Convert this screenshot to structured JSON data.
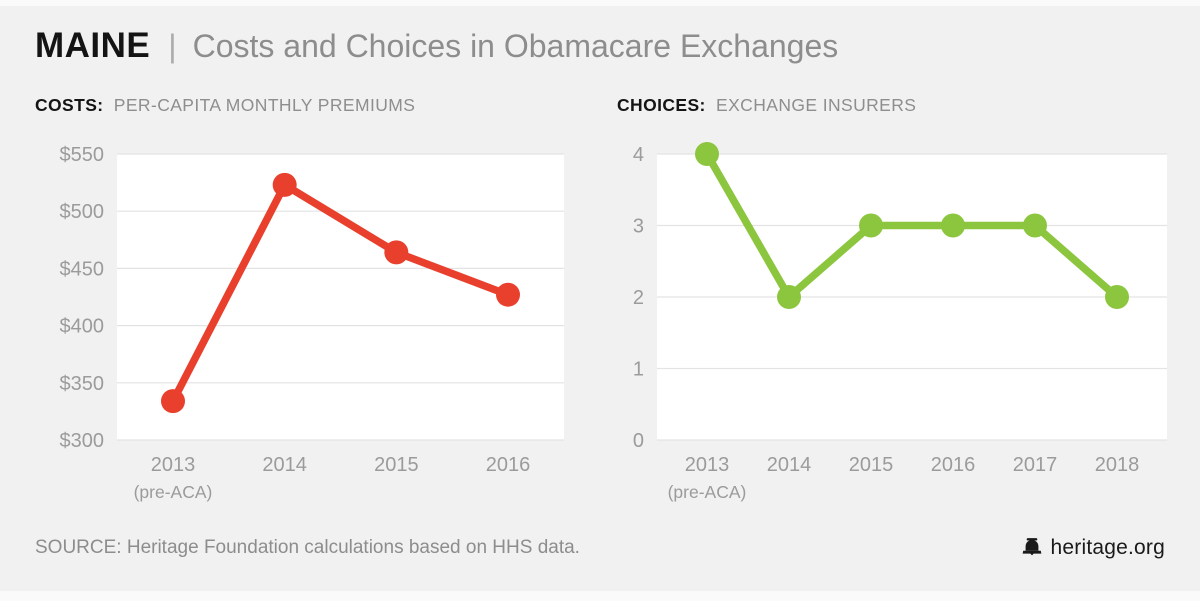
{
  "header": {
    "state": "MAINE",
    "separator": "|",
    "title": "Costs and Choices in Obamacare Exchanges"
  },
  "chart_data": [
    {
      "type": "line",
      "name": "costs",
      "title_bold": "COSTS:",
      "title_rest": "PER-CAPITA MONTHLY PREMIUMS",
      "color": "#E8402D",
      "categories": [
        "2013",
        "2014",
        "2015",
        "2016"
      ],
      "x_sublabel": {
        "index": 0,
        "text": "(pre-ACA)"
      },
      "values": [
        334,
        523,
        464,
        427
      ],
      "ylim": [
        300,
        550
      ],
      "yticks": [
        300,
        350,
        400,
        450,
        500,
        550
      ],
      "ytick_prefix": "$",
      "grid": true,
      "legend": "none"
    },
    {
      "type": "line",
      "name": "choices",
      "title_bold": "CHOICES:",
      "title_rest": "EXCHANGE INSURERS",
      "color": "#8CC63F",
      "categories": [
        "2013",
        "2014",
        "2015",
        "2016",
        "2017",
        "2018"
      ],
      "x_sublabel": {
        "index": 0,
        "text": "(pre-ACA)"
      },
      "values": [
        4,
        2,
        3,
        3,
        3,
        2
      ],
      "ylim": [
        0,
        4
      ],
      "yticks": [
        0,
        1,
        2,
        3,
        4
      ],
      "ytick_prefix": "",
      "grid": true,
      "legend": "none"
    }
  ],
  "footer": {
    "source": "SOURCE: Heritage Foundation calculations based on HHS data.",
    "brand": "heritage.org"
  },
  "icons": {
    "brand_icon": "liberty-bell-icon"
  },
  "colors": {
    "costs_series": "#E8402D",
    "choices_series": "#8CC63F",
    "background": "#F1F1F2",
    "plot_background": "#FFFFFF",
    "gridline": "#E3E3E3",
    "axis_text": "#9B9B9B"
  }
}
